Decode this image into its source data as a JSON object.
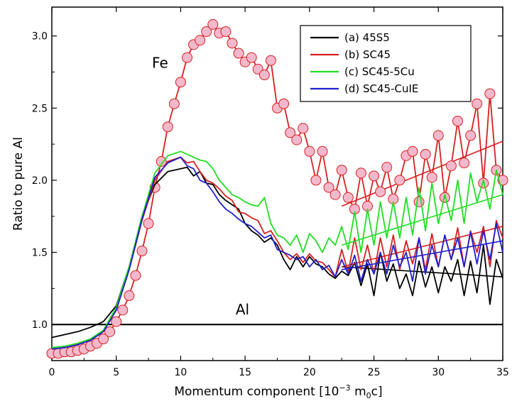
{
  "chart_data": {
    "type": "line",
    "title": "",
    "xlabel": "Momentum component [10",
    "xlabel_sup": "−3",
    "xlabel_mid": " m",
    "xlabel_sub": "0",
    "xlabel_end": "c]",
    "ylabel": "Ratio to pure Al",
    "xlim": [
      0,
      35
    ],
    "ylim": [
      0.75,
      3.2
    ],
    "x_ticks": [
      0,
      5,
      10,
      15,
      20,
      25,
      30,
      35
    ],
    "y_ticks": [
      1.0,
      1.5,
      2.0,
      2.5,
      3.0
    ],
    "x_tick_labels": [
      "0",
      "5",
      "10",
      "15",
      "20",
      "25",
      "30",
      "35"
    ],
    "y_tick_labels": [
      "1.0",
      "1.5",
      "2.0",
      "2.5",
      "3.0"
    ],
    "legend_position": "top-right",
    "annotations": [
      {
        "text": "Fe",
        "x": 8.4,
        "y": 2.78
      },
      {
        "text": "Al",
        "x": 14.8,
        "y": 1.07
      }
    ],
    "reference_line": {
      "name": "Al",
      "y": 1.0,
      "color": "#000000"
    },
    "series": [
      {
        "name": "(a) 45S5",
        "color": "#000000",
        "x": [
          0,
          1,
          2,
          3,
          4,
          5,
          6,
          7,
          8,
          9,
          10,
          10.5,
          11,
          11.5,
          12,
          12.5,
          13,
          13.5,
          14,
          14.5,
          15,
          15.5,
          16,
          16.5,
          17,
          17.5,
          18,
          18.5,
          19,
          19.5,
          20,
          20.5,
          21,
          21.5,
          22,
          22.5,
          23,
          23.5,
          24,
          24.5,
          25,
          25.5,
          26,
          26.5,
          27,
          27.5,
          28,
          28.5,
          29,
          29.5,
          30,
          30.5,
          31,
          31.5,
          32,
          32.5,
          33,
          33.5,
          34,
          34.5,
          35
        ],
        "y": [
          0.91,
          0.93,
          0.95,
          0.98,
          1.02,
          1.13,
          1.4,
          1.75,
          1.97,
          2.06,
          2.08,
          2.09,
          2.03,
          2.06,
          1.98,
          1.97,
          1.9,
          1.86,
          1.83,
          1.8,
          1.7,
          1.65,
          1.62,
          1.57,
          1.6,
          1.55,
          1.45,
          1.38,
          1.47,
          1.4,
          1.47,
          1.42,
          1.4,
          1.35,
          1.32,
          1.37,
          1.34,
          1.43,
          1.27,
          1.42,
          1.2,
          1.5,
          1.3,
          1.42,
          1.25,
          1.35,
          1.2,
          1.44,
          1.26,
          1.4,
          1.22,
          1.4,
          1.3,
          1.45,
          1.2,
          1.44,
          1.22,
          1.55,
          1.14,
          1.45,
          1.32
        ],
        "fit": {
          "x": [
            22.5,
            35
          ],
          "y": [
            1.4,
            1.33
          ]
        }
      },
      {
        "name": "(b) SC45",
        "color": "#d62020",
        "x": [
          0,
          1,
          2,
          3,
          4,
          5,
          6,
          7,
          8,
          9,
          10,
          10.5,
          11,
          11.5,
          12,
          12.5,
          13,
          13.5,
          14,
          14.5,
          15,
          15.5,
          16,
          16.5,
          17,
          17.5,
          18,
          18.5,
          19,
          19.5,
          20,
          20.5,
          21,
          21.5,
          22,
          22.5,
          23,
          23.5,
          24,
          24.5,
          25,
          25.5,
          26,
          26.5,
          27,
          27.5,
          28,
          28.5,
          29,
          29.5,
          30,
          30.5,
          31,
          31.5,
          32,
          32.5,
          33,
          33.5,
          34,
          34.5,
          35
        ],
        "y": [
          0.83,
          0.84,
          0.86,
          0.89,
          0.95,
          1.1,
          1.38,
          1.72,
          2.0,
          2.13,
          2.16,
          2.12,
          2.13,
          2.06,
          2.0,
          1.98,
          1.94,
          1.89,
          1.86,
          1.78,
          1.77,
          1.74,
          1.72,
          1.63,
          1.65,
          1.58,
          1.5,
          1.45,
          1.49,
          1.43,
          1.49,
          1.44,
          1.43,
          1.38,
          1.33,
          1.52,
          1.36,
          1.6,
          1.38,
          1.55,
          1.35,
          1.6,
          1.4,
          1.62,
          1.38,
          1.58,
          1.42,
          1.6,
          1.38,
          1.63,
          1.4,
          1.62,
          1.45,
          1.67,
          1.4,
          1.65,
          1.5,
          1.68,
          1.4,
          1.72,
          1.6
        ],
        "fit": {
          "x": [
            22.5,
            35
          ],
          "y": [
            1.4,
            1.68
          ]
        }
      },
      {
        "name": "(c) SC45-5Cu",
        "color": "#22dd22",
        "x": [
          0,
          1,
          2,
          3,
          4,
          5,
          6,
          7,
          8,
          9,
          10,
          10.5,
          11,
          11.5,
          12,
          12.5,
          13,
          13.5,
          14,
          14.5,
          15,
          15.5,
          16,
          16.5,
          17,
          17.5,
          18,
          18.5,
          19,
          19.5,
          20,
          20.5,
          21,
          21.5,
          22,
          22.5,
          23,
          23.5,
          24,
          24.5,
          25,
          25.5,
          26,
          26.5,
          27,
          27.5,
          28,
          28.5,
          29,
          29.5,
          30,
          30.5,
          31,
          31.5,
          32,
          32.5,
          33,
          33.5,
          34,
          34.5,
          35
        ],
        "y": [
          0.84,
          0.85,
          0.87,
          0.9,
          0.96,
          1.12,
          1.4,
          1.75,
          2.05,
          2.17,
          2.2,
          2.18,
          2.16,
          2.14,
          2.13,
          2.08,
          2.0,
          1.95,
          1.9,
          1.88,
          1.85,
          1.83,
          1.82,
          1.88,
          1.7,
          1.62,
          1.6,
          1.55,
          1.62,
          1.5,
          1.63,
          1.58,
          1.5,
          1.6,
          1.55,
          1.68,
          1.52,
          1.78,
          1.5,
          1.8,
          1.55,
          1.85,
          1.6,
          1.85,
          1.6,
          1.88,
          1.62,
          1.95,
          1.65,
          1.98,
          1.7,
          1.9,
          1.72,
          2.0,
          1.7,
          2.05,
          1.85,
          2.0,
          1.8,
          2.07,
          1.9
        ],
        "fit": {
          "x": [
            22.5,
            35
          ],
          "y": [
            1.55,
            1.9
          ]
        }
      },
      {
        "name": "(d) SC45-CuIE",
        "color": "#2020cc",
        "x": [
          0,
          1,
          2,
          3,
          4,
          5,
          6,
          7,
          8,
          9,
          10,
          10.5,
          11,
          11.5,
          12,
          12.5,
          13,
          13.5,
          14,
          14.5,
          15,
          15.5,
          16,
          16.5,
          17,
          17.5,
          18,
          18.5,
          19,
          19.5,
          20,
          20.5,
          21,
          21.5,
          22,
          22.5,
          23,
          23.5,
          24,
          24.5,
          25,
          25.5,
          26,
          26.5,
          27,
          27.5,
          28,
          28.5,
          29,
          29.5,
          30,
          30.5,
          31,
          31.5,
          32,
          32.5,
          33,
          33.5,
          34,
          34.5,
          35
        ],
        "y": [
          0.83,
          0.84,
          0.86,
          0.89,
          0.95,
          1.1,
          1.38,
          1.73,
          2.02,
          2.12,
          2.16,
          2.1,
          2.08,
          2.0,
          1.98,
          1.92,
          1.85,
          1.8,
          1.77,
          1.73,
          1.7,
          1.68,
          1.64,
          1.6,
          1.62,
          1.52,
          1.5,
          1.48,
          1.45,
          1.47,
          1.4,
          1.45,
          1.38,
          1.41,
          1.33,
          1.45,
          1.35,
          1.48,
          1.3,
          1.45,
          1.35,
          1.5,
          1.35,
          1.55,
          1.4,
          1.5,
          1.3,
          1.6,
          1.35,
          1.55,
          1.4,
          1.62,
          1.45,
          1.6,
          1.4,
          1.64,
          1.42,
          1.65,
          1.45,
          1.7,
          1.5
        ],
        "fit": {
          "x": [
            22.5,
            35
          ],
          "y": [
            1.38,
            1.58
          ]
        }
      },
      {
        "name": "Fe",
        "color": "#d62020",
        "marker_fill": "#f4b8cc",
        "x": [
          0,
          0.5,
          1,
          1.5,
          2,
          2.5,
          3,
          3.5,
          4,
          4.5,
          5,
          5.5,
          6,
          6.5,
          7,
          7.5,
          8,
          8.5,
          9,
          9.5,
          10,
          10.5,
          11,
          11.5,
          12,
          12.5,
          13,
          13.5,
          14,
          14.5,
          15,
          15.5,
          16,
          16.5,
          17,
          17.5,
          18,
          18.5,
          19,
          19.5,
          20,
          20.5,
          21,
          21.5,
          22,
          22.5,
          23,
          23.5,
          24,
          24.5,
          25,
          25.5,
          26,
          26.5,
          27,
          27.5,
          28,
          28.5,
          29,
          29.5,
          30,
          30.5,
          31,
          31.5,
          32,
          32.5,
          33,
          33.5,
          34,
          34.5,
          35
        ],
        "y": [
          0.8,
          0.8,
          0.81,
          0.81,
          0.82,
          0.83,
          0.85,
          0.87,
          0.9,
          0.95,
          1.02,
          1.1,
          1.2,
          1.34,
          1.51,
          1.7,
          1.95,
          2.13,
          2.37,
          2.53,
          2.68,
          2.85,
          2.94,
          2.97,
          3.03,
          3.08,
          3.02,
          3.03,
          2.95,
          2.88,
          2.82,
          2.85,
          2.77,
          2.73,
          2.83,
          2.5,
          2.53,
          2.33,
          2.28,
          2.36,
          2.2,
          2.0,
          2.2,
          1.95,
          1.9,
          2.07,
          1.88,
          1.8,
          2.05,
          1.82,
          2.03,
          1.92,
          2.09,
          1.87,
          2.0,
          2.17,
          2.2,
          1.85,
          2.18,
          2.02,
          2.31,
          1.88,
          2.1,
          2.41,
          2.12,
          2.31,
          2.53,
          1.98,
          2.6,
          2.07,
          2.0
        ],
        "fit": {
          "x": [
            22.5,
            35
          ],
          "y": [
            1.82,
            2.27
          ]
        }
      }
    ]
  }
}
